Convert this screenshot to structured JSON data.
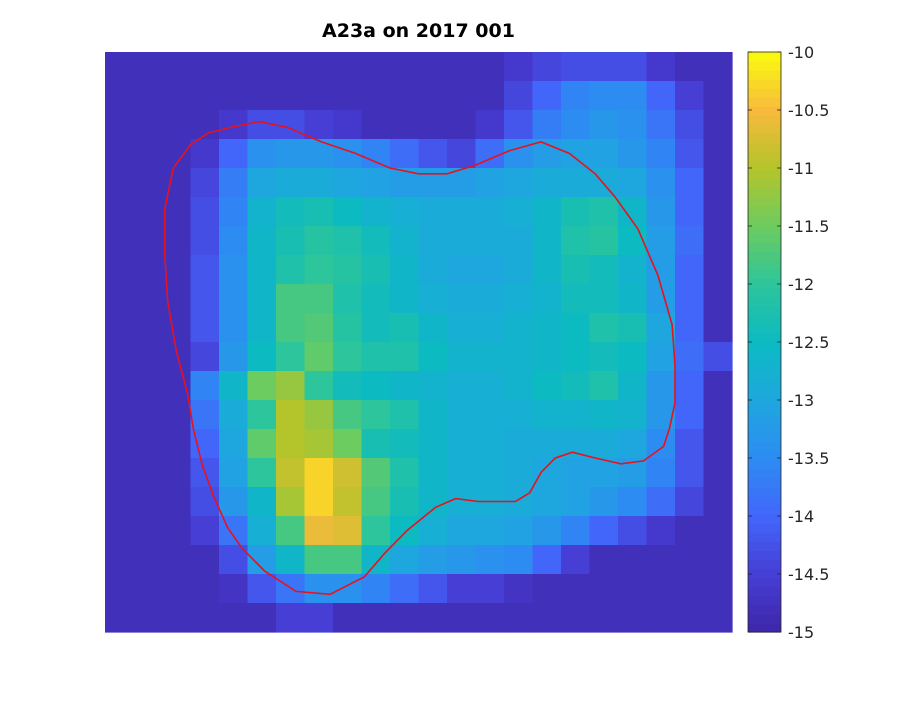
{
  "chart_data": {
    "type": "heatmap",
    "title": "A23a on 2017 001",
    "xlabel": "",
    "ylabel": "",
    "colorbar": {
      "min": -15,
      "max": -10,
      "ticks": [
        -10,
        -10.5,
        -11,
        -11.5,
        -12,
        -12.5,
        -13,
        -13.5,
        -14,
        -14.5,
        -15
      ],
      "tick_labels": [
        "-10",
        "-10.5",
        "-11",
        "-11.5",
        "-12",
        "-12.5",
        "-13",
        "-13.5",
        "-14",
        "-14.5",
        "-15"
      ],
      "colormap": "parula"
    },
    "grid": {
      "cols": 22,
      "rows": 20,
      "row_order": "top-to-bottom",
      "values": [
        [
          -14.8,
          -14.8,
          -14.8,
          -14.8,
          -14.8,
          -14.8,
          -14.8,
          -14.8,
          -14.8,
          -14.8,
          -14.8,
          -14.8,
          -14.8,
          -14.8,
          -14.6,
          -14.4,
          -14.3,
          -14.3,
          -14.3,
          -14.6,
          -14.8,
          -14.8
        ],
        [
          -14.8,
          -14.8,
          -14.8,
          -14.8,
          -14.8,
          -14.8,
          -14.8,
          -14.8,
          -14.8,
          -14.8,
          -14.8,
          -14.8,
          -14.8,
          -14.8,
          -14.4,
          -14.0,
          -13.6,
          -13.5,
          -13.5,
          -14.0,
          -14.5,
          -14.8
        ],
        [
          -14.8,
          -14.8,
          -14.8,
          -14.8,
          -14.6,
          -14.3,
          -14.3,
          -14.5,
          -14.6,
          -14.8,
          -14.8,
          -14.8,
          -14.8,
          -14.6,
          -14.2,
          -13.7,
          -13.5,
          -13.3,
          -13.4,
          -13.8,
          -14.3,
          -14.8
        ],
        [
          -14.8,
          -14.8,
          -14.8,
          -14.6,
          -14.0,
          -13.4,
          -13.3,
          -13.3,
          -13.4,
          -13.6,
          -13.9,
          -14.2,
          -14.4,
          -13.9,
          -13.4,
          -13.2,
          -13.1,
          -13.1,
          -13.3,
          -13.6,
          -14.2,
          -14.8
        ],
        [
          -14.8,
          -14.8,
          -14.8,
          -14.4,
          -13.7,
          -13.0,
          -12.9,
          -12.9,
          -13.0,
          -13.1,
          -13.2,
          -13.2,
          -13.2,
          -13.1,
          -13.0,
          -12.9,
          -12.9,
          -12.9,
          -13.0,
          -13.4,
          -14.0,
          -14.8
        ],
        [
          -14.8,
          -14.8,
          -14.8,
          -14.3,
          -13.6,
          -12.7,
          -12.4,
          -12.3,
          -12.5,
          -12.7,
          -12.8,
          -12.9,
          -12.9,
          -12.9,
          -12.8,
          -12.6,
          -12.3,
          -12.2,
          -12.6,
          -13.3,
          -14.0,
          -14.8
        ],
        [
          -14.8,
          -14.8,
          -14.8,
          -14.3,
          -13.5,
          -12.6,
          -12.3,
          -12.1,
          -12.2,
          -12.4,
          -12.7,
          -12.9,
          -12.9,
          -12.9,
          -12.9,
          -12.6,
          -12.2,
          -12.1,
          -12.5,
          -13.2,
          -13.9,
          -14.8
        ],
        [
          -14.8,
          -14.8,
          -14.8,
          -14.2,
          -13.4,
          -12.6,
          -12.2,
          -12.0,
          -12.1,
          -12.3,
          -12.6,
          -12.9,
          -13.0,
          -13.0,
          -12.9,
          -12.6,
          -12.3,
          -12.4,
          -12.7,
          -13.2,
          -14.0,
          -14.8
        ],
        [
          -14.8,
          -14.8,
          -14.8,
          -14.2,
          -13.4,
          -12.6,
          -11.8,
          -11.8,
          -12.2,
          -12.4,
          -12.6,
          -12.8,
          -12.9,
          -12.9,
          -12.8,
          -12.7,
          -12.4,
          -12.4,
          -12.6,
          -13.2,
          -14.0,
          -14.8
        ],
        [
          -14.8,
          -14.8,
          -14.8,
          -14.2,
          -13.4,
          -12.6,
          -11.8,
          -11.7,
          -12.1,
          -12.4,
          -12.3,
          -12.6,
          -12.8,
          -12.8,
          -12.7,
          -12.6,
          -12.5,
          -12.2,
          -12.3,
          -13.0,
          -14.0,
          -14.8
        ],
        [
          -14.8,
          -14.8,
          -14.8,
          -14.4,
          -13.3,
          -12.5,
          -12.0,
          -11.6,
          -12.0,
          -12.2,
          -12.2,
          -12.5,
          -12.7,
          -12.7,
          -12.7,
          -12.6,
          -12.5,
          -12.4,
          -12.5,
          -13.1,
          -13.9,
          -14.3
        ],
        [
          -14.8,
          -14.8,
          -14.8,
          -13.6,
          -12.6,
          -11.5,
          -11.2,
          -12.0,
          -12.4,
          -12.5,
          -12.6,
          -12.7,
          -12.8,
          -12.8,
          -12.7,
          -12.5,
          -12.4,
          -12.2,
          -12.6,
          -13.3,
          -14.0,
          -14.8
        ],
        [
          -14.8,
          -14.8,
          -14.8,
          -13.8,
          -12.9,
          -12.0,
          -11.0,
          -11.2,
          -11.8,
          -12.0,
          -12.2,
          -12.6,
          -12.8,
          -12.8,
          -12.8,
          -12.7,
          -12.7,
          -12.6,
          -12.7,
          -13.3,
          -14.0,
          -14.8
        ],
        [
          -14.8,
          -14.8,
          -14.8,
          -14.0,
          -13.0,
          -11.6,
          -11.0,
          -11.1,
          -11.5,
          -12.3,
          -12.4,
          -12.6,
          -12.8,
          -12.8,
          -12.9,
          -12.9,
          -12.9,
          -12.9,
          -13.0,
          -13.5,
          -14.2,
          -14.8
        ],
        [
          -14.8,
          -14.8,
          -14.8,
          -14.2,
          -13.1,
          -12.0,
          -10.9,
          -10.3,
          -10.8,
          -11.7,
          -12.2,
          -12.6,
          -12.8,
          -12.8,
          -12.9,
          -13.0,
          -13.1,
          -13.1,
          -13.2,
          -13.6,
          -14.2,
          -14.8
        ],
        [
          -14.8,
          -14.8,
          -14.8,
          -14.3,
          -13.3,
          -12.6,
          -11.1,
          -10.3,
          -10.9,
          -11.8,
          -12.3,
          -12.6,
          -12.8,
          -12.8,
          -12.9,
          -13.0,
          -13.1,
          -13.3,
          -13.5,
          -13.9,
          -14.4,
          -14.8
        ],
        [
          -14.8,
          -14.8,
          -14.8,
          -14.5,
          -13.8,
          -12.8,
          -11.8,
          -10.6,
          -10.7,
          -12.0,
          -12.5,
          -12.8,
          -13.0,
          -13.0,
          -13.1,
          -13.3,
          -13.6,
          -14.0,
          -14.3,
          -14.6,
          -14.8,
          -14.8
        ],
        [
          -14.8,
          -14.8,
          -14.8,
          -14.8,
          -14.3,
          -13.2,
          -12.6,
          -11.8,
          -11.8,
          -12.6,
          -13.0,
          -13.2,
          -13.3,
          -13.4,
          -13.5,
          -14.0,
          -14.5,
          -14.8,
          -14.8,
          -14.8,
          -14.8,
          -14.8
        ],
        [
          -14.8,
          -14.8,
          -14.8,
          -14.8,
          -14.7,
          -14.2,
          -13.8,
          -13.4,
          -13.4,
          -13.6,
          -13.9,
          -14.2,
          -14.5,
          -14.5,
          -14.7,
          -14.8,
          -14.8,
          -14.8,
          -14.8,
          -14.8,
          -14.8,
          -14.8
        ],
        [
          -14.8,
          -14.8,
          -14.8,
          -14.8,
          -14.8,
          -14.8,
          -14.5,
          -14.5,
          -14.8,
          -14.8,
          -14.8,
          -14.8,
          -14.8,
          -14.8,
          -14.8,
          -14.8,
          -14.8,
          -14.8,
          -14.8,
          -14.8,
          -14.8,
          -14.8
        ]
      ]
    },
    "contour": {
      "color": "#e8121c",
      "x_range": [
        0,
        22
      ],
      "y_range": [
        0,
        20
      ],
      "points": [
        [
          4.4,
          2.6
        ],
        [
          5.4,
          2.4
        ],
        [
          6.4,
          2.6
        ],
        [
          7.6,
          3.1
        ],
        [
          8.8,
          3.5
        ],
        [
          10.0,
          4.0
        ],
        [
          11.0,
          4.2
        ],
        [
          12.0,
          4.2
        ],
        [
          13.0,
          3.9
        ],
        [
          14.2,
          3.4
        ],
        [
          15.3,
          3.1
        ],
        [
          16.3,
          3.5
        ],
        [
          17.2,
          4.2
        ],
        [
          17.9,
          5.0
        ],
        [
          18.7,
          6.1
        ],
        [
          19.4,
          7.7
        ],
        [
          19.9,
          9.4
        ],
        [
          20.0,
          10.8
        ],
        [
          20.0,
          12.1
        ],
        [
          19.8,
          13.0
        ],
        [
          19.6,
          13.6
        ],
        [
          18.9,
          14.1
        ],
        [
          18.1,
          14.2
        ],
        [
          17.2,
          14.0
        ],
        [
          16.4,
          13.8
        ],
        [
          15.8,
          14.0
        ],
        [
          15.3,
          14.5
        ],
        [
          14.9,
          15.2
        ],
        [
          14.4,
          15.5
        ],
        [
          13.1,
          15.5
        ],
        [
          12.3,
          15.4
        ],
        [
          11.6,
          15.7
        ],
        [
          10.6,
          16.5
        ],
        [
          9.8,
          17.3
        ],
        [
          9.1,
          18.1
        ],
        [
          7.9,
          18.7
        ],
        [
          6.7,
          18.6
        ],
        [
          5.6,
          17.9
        ],
        [
          4.8,
          17.1
        ],
        [
          4.3,
          16.4
        ],
        [
          3.8,
          15.3
        ],
        [
          3.4,
          14.2
        ],
        [
          3.1,
          13.0
        ],
        [
          2.9,
          11.8
        ],
        [
          2.5,
          10.3
        ],
        [
          2.2,
          8.6
        ],
        [
          2.1,
          7.0
        ],
        [
          2.1,
          5.4
        ],
        [
          2.4,
          4.0
        ],
        [
          3.0,
          3.2
        ],
        [
          3.6,
          2.8
        ],
        [
          4.4,
          2.6
        ]
      ]
    }
  }
}
